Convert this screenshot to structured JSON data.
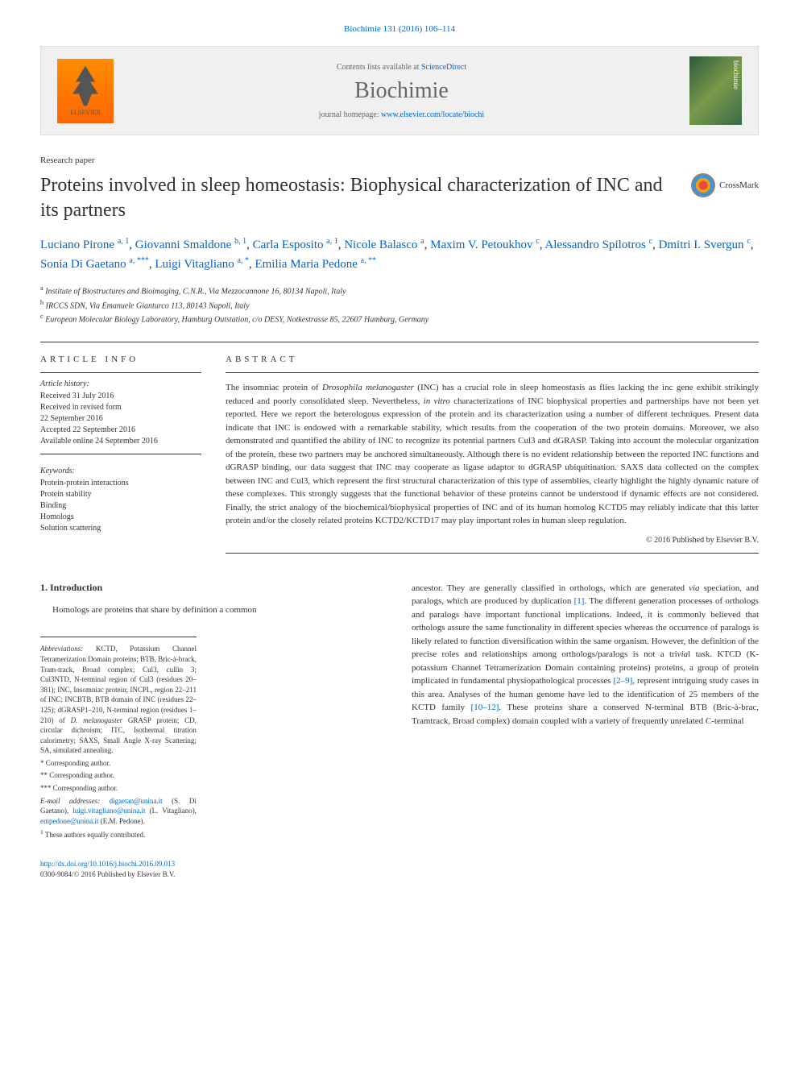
{
  "citation": "Biochimie 131 (2016) 106–114",
  "header": {
    "contents_prefix": "Contents lists available at ",
    "contents_link": "ScienceDirect",
    "journal_name": "Biochimie",
    "homepage_prefix": "journal homepage: ",
    "homepage_link": "www.elsevier.com/locate/biochi",
    "publisher": "ELSEVIER",
    "cover_text": "biochimie"
  },
  "paper_type": "Research paper",
  "title": "Proteins involved in sleep homeostasis: Biophysical characterization of INC and its partners",
  "crossmark": "CrossMark",
  "authors": [
    {
      "name": "Luciano Pirone",
      "sup": "a, 1"
    },
    {
      "name": "Giovanni Smaldone",
      "sup": "b, 1"
    },
    {
      "name": "Carla Esposito",
      "sup": "a, 1"
    },
    {
      "name": "Nicole Balasco",
      "sup": "a"
    },
    {
      "name": "Maxim V. Petoukhov",
      "sup": "c"
    },
    {
      "name": "Alessandro Spilotros",
      "sup": "c"
    },
    {
      "name": "Dmitri I. Svergun",
      "sup": "c"
    },
    {
      "name": "Sonia Di Gaetano",
      "sup": "a, ***"
    },
    {
      "name": "Luigi Vitagliano",
      "sup": "a, *"
    },
    {
      "name": "Emilia Maria Pedone",
      "sup": "a, **"
    }
  ],
  "affiliations": [
    {
      "sup": "a",
      "text": "Institute of Biostructures and Bioimaging, C.N.R., Via Mezzocannone 16, 80134 Napoli, Italy"
    },
    {
      "sup": "b",
      "text": "IRCCS SDN, Via Emanuele Gianturco 113, 80143 Napoli, Italy"
    },
    {
      "sup": "c",
      "text": "European Molecular Biology Laboratory, Hamburg Outstation, c/o DESY, Notkestrasse 85, 22607 Hamburg, Germany"
    }
  ],
  "article_info": {
    "header": "ARTICLE INFO",
    "history_label": "Article history:",
    "history": [
      "Received 31 July 2016",
      "Received in revised form",
      "22 September 2016",
      "Accepted 22 September 2016",
      "Available online 24 September 2016"
    ],
    "keywords_label": "Keywords:",
    "keywords": [
      "Protein-protein interactions",
      "Protein stability",
      "Binding",
      "Homologs",
      "Solution scattering"
    ]
  },
  "abstract": {
    "header": "ABSTRACT",
    "text": "The insomniac protein of Drosophila melanogaster (INC) has a crucial role in sleep homeostasis as flies lacking the inc gene exhibit strikingly reduced and poorly consolidated sleep. Nevertheless, in vitro characterizations of INC biophysical properties and partnerships have not been yet reported. Here we report the heterologous expression of the protein and its characterization using a number of different techniques. Present data indicate that INC is endowed with a remarkable stability, which results from the cooperation of the two protein domains. Moreover, we also demonstrated and quantified the ability of INC to recognize its potential partners Cul3 and dGRASP. Taking into account the molecular organization of the protein, these two partners may be anchored simultaneously. Although there is no evident relationship between the reported INC functions and dGRASP binding, our data suggest that INC may cooperate as ligase adaptor to dGRASP ubiquitination. SAXS data collected on the complex between INC and Cul3, which represent the first structural characterization of this type of assemblies, clearly highlight the highly dynamic nature of these complexes. This strongly suggests that the functional behavior of these proteins cannot be understood if dynamic effects are not considered. Finally, the strict analogy of the biochemical/biophysical properties of INC and of its human homolog KCTD5 may reliably indicate that this latter protein and/or the closely related proteins KCTD2/KCTD17 may play important roles in human sleep regulation.",
    "copyright": "© 2016 Published by Elsevier B.V."
  },
  "introduction": {
    "heading": "1. Introduction",
    "para1": "Homologs are proteins that share by definition a common",
    "para2": "ancestor. They are generally classified in orthologs, which are generated via speciation, and paralogs, which are produced by duplication [1]. The different generation processes of orthologs and paralogs have important functional implications. Indeed, it is commonly believed that orthologs assure the same functionality in different species whereas the occurrence of paralogs is likely related to function diversification within the same organism. However, the definition of the precise roles and relationships among orthologs/paralogs is not a trivial task. KTCD (K-potassium Channel Tetramerization Domain containing proteins) proteins, a group of protein implicated in fundamental physiopathological processes [2–9], represent intriguing study cases in this area. Analyses of the human genome have led to the identification of 25 members of the KCTD family [10–12]. These proteins share a conserved N-terminal BTB (Bric-à-brac, Tramtrack, Broad complex) domain coupled with a variety of frequently unrelated C-terminal"
  },
  "footnotes": {
    "abbrev_label": "Abbreviations:",
    "abbrev_text": "KCTD, Potassium Channel Tetramerization Domain proteins; BTB, Bric-à-brack, Tram-track, Broad complex; Cul3, cullin 3; Cul3NTD, N-terminal region of Cul3 (residues 20–381); INC, Insomniac protein; INCPL, region 22–211 of INC; INCBTB, BTB domain of INC (residues 22–125); dGRASP1–210, N-terminal region (residues 1–210) of D. melanogaster GRASP protein; CD, circular dichroism; ITC, Isothermal titration calorimetry; SAXS, Small Angle X-ray Scattering; SA, simulated annealing.",
    "corr1": "* Corresponding author.",
    "corr2": "** Corresponding author.",
    "corr3": "*** Corresponding author.",
    "email_label": "E-mail addresses:",
    "emails": [
      {
        "email": "digaetan@unina.it",
        "name": "(S. Di Gaetano)"
      },
      {
        "email": "luigi.vitagliano@unina.it",
        "name": "(L. Vitagliano)"
      },
      {
        "email": "empedone@unina.it",
        "name": "(E.M. Pedone)."
      }
    ],
    "equal": "1 These authors equally contributed."
  },
  "footer": {
    "doi": "http://dx.doi.org/10.1016/j.biochi.2016.09.013",
    "issn": "0300-9084/© 2016 Published by Elsevier B.V."
  },
  "colors": {
    "link": "#0066cc",
    "text": "#333333",
    "header_bg": "#f0f0f0",
    "elsevier_orange": "#ff8c00"
  },
  "typography": {
    "title_size": 24,
    "journal_size": 28,
    "body_size": 11,
    "footnote_size": 9
  }
}
